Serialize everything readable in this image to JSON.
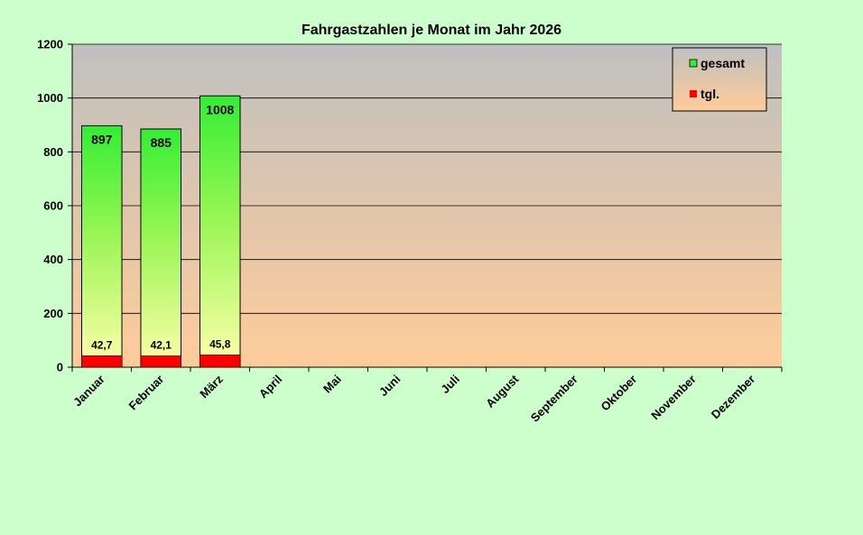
{
  "chart_data": {
    "type": "bar",
    "title": "Fahrgastzahlen je Monat im Jahr 2026",
    "categories": [
      "Januar",
      "Februar",
      "März",
      "April",
      "Mai",
      "Juni",
      "Juli",
      "August",
      "September",
      "Oktober",
      "November",
      "Dezember"
    ],
    "series": [
      {
        "name": "gesamt",
        "values": [
          897,
          885,
          1008,
          null,
          null,
          null,
          null,
          null,
          null,
          null,
          null,
          null
        ],
        "labels": [
          "897",
          "885",
          "1008"
        ]
      },
      {
        "name": "tgl.",
        "values": [
          42.7,
          42.1,
          45.8,
          null,
          null,
          null,
          null,
          null,
          null,
          null,
          null,
          null
        ],
        "labels": [
          "42,7",
          "42,1",
          "45,8"
        ]
      }
    ],
    "yticks": [
      "0",
      "200",
      "400",
      "600",
      "800",
      "1000",
      "1200"
    ],
    "ylim": [
      0,
      1200
    ],
    "grid": true,
    "legend": "top-right",
    "colors": {
      "page_background": "#ccffcc",
      "plot_top": "#c0c0c0",
      "plot_bottom": "#ffcc99",
      "gesamt_top": "#33ee33",
      "gesamt_bottom": "#ffffaa",
      "tgl": "#ff0000"
    }
  }
}
